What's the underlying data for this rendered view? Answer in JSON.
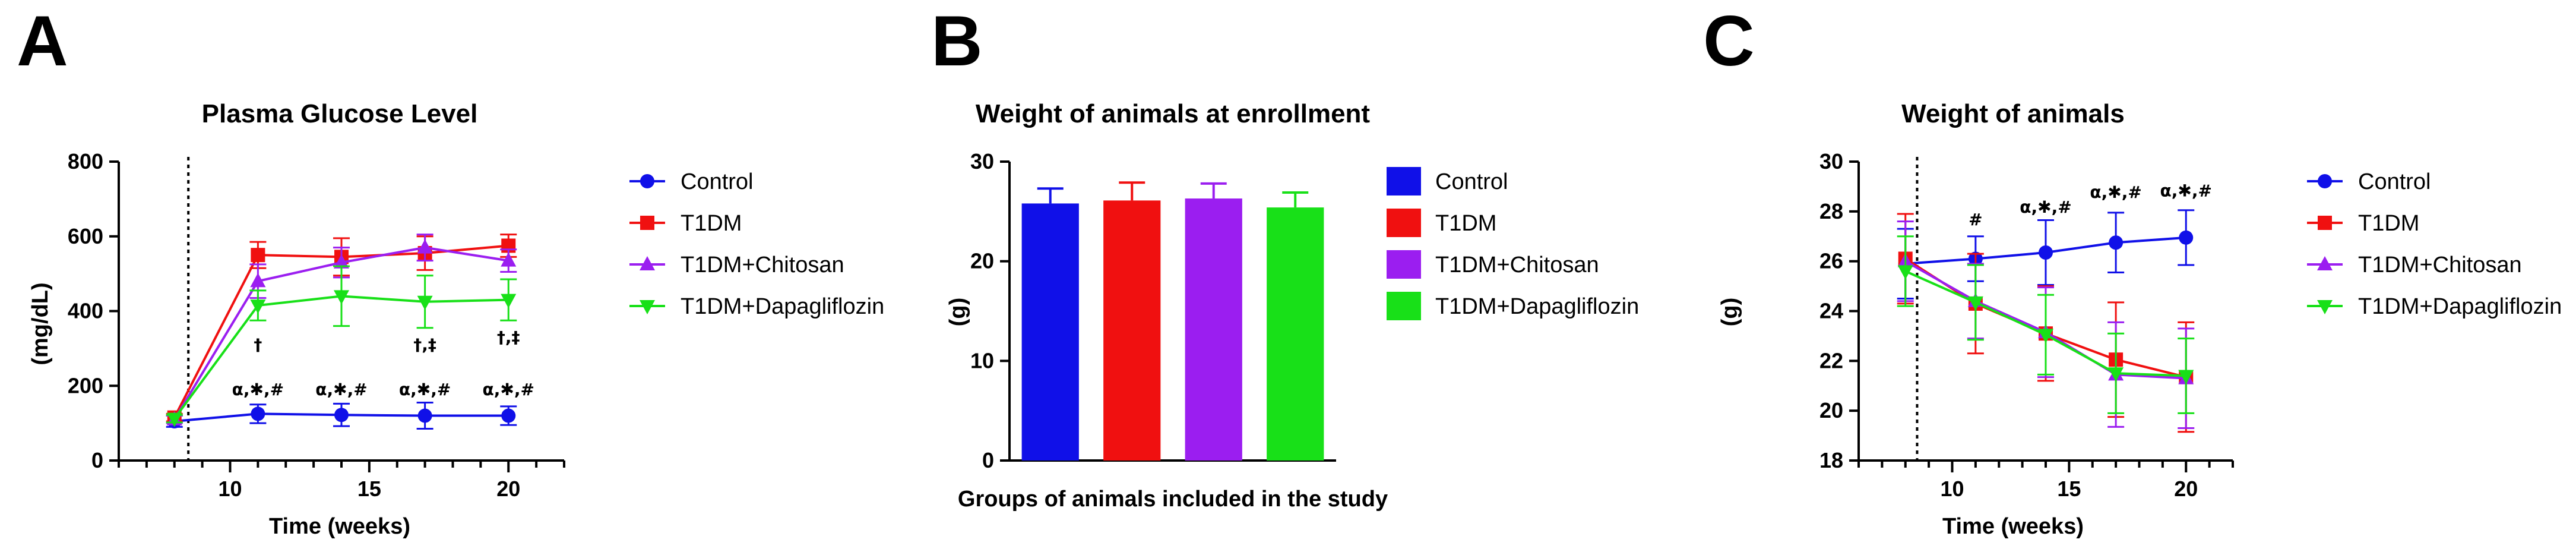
{
  "colors": {
    "Control": "#1010e8",
    "T1DM": "#f01010",
    "T1DM+Chitosan": "#9b1ef0",
    "T1DM+Dapagliflozin": "#18e018"
  },
  "chart_data": [
    {
      "panel": "A",
      "type": "line",
      "title": "Plasma Glucose Level",
      "xlabel": "Time (weeks)",
      "ylabel": "(mg/dL)",
      "xlim": [
        6,
        22
      ],
      "ylim": [
        0,
        800
      ],
      "xticks": [
        10,
        15,
        20
      ],
      "yticks": [
        0,
        200,
        400,
        600,
        800
      ],
      "vline_x": 8.5,
      "legend_position": "right",
      "series": [
        {
          "name": "Control",
          "marker": "circle",
          "x": [
            8,
            11,
            14,
            17,
            20
          ],
          "y": [
            105,
            125,
            122,
            120,
            120
          ],
          "err": [
            15,
            25,
            30,
            35,
            25
          ]
        },
        {
          "name": "T1DM",
          "marker": "square",
          "x": [
            8,
            11,
            14,
            17,
            20
          ],
          "y": [
            115,
            550,
            545,
            555,
            575
          ],
          "err": [
            10,
            35,
            50,
            45,
            30
          ]
        },
        {
          "name": "T1DM+Chitosan",
          "marker": "triangle-up",
          "x": [
            8,
            11,
            14,
            17,
            20
          ],
          "y": [
            110,
            480,
            530,
            570,
            535
          ],
          "err": [
            10,
            45,
            40,
            35,
            30
          ]
        },
        {
          "name": "T1DM+Dapagliflozin",
          "marker": "triangle-down",
          "x": [
            8,
            11,
            14,
            17,
            20
          ],
          "y": [
            112,
            415,
            440,
            425,
            430
          ],
          "err": [
            10,
            40,
            80,
            70,
            55
          ]
        }
      ],
      "annotations": [
        {
          "text": "α,✱,#",
          "x": 11,
          "y": 175
        },
        {
          "text": "α,✱,#",
          "x": 14,
          "y": 175
        },
        {
          "text": "α,✱,#",
          "x": 17,
          "y": 175
        },
        {
          "text": "α,✱,#",
          "x": 20,
          "y": 175
        },
        {
          "text": "†",
          "x": 11,
          "y": 295
        },
        {
          "text": "†,‡",
          "x": 17,
          "y": 295
        },
        {
          "text": "†,‡",
          "x": 20,
          "y": 315
        }
      ]
    },
    {
      "panel": "B",
      "type": "bar",
      "title": "Weight of animals at enrollment",
      "xlabel": "Groups of animals included in the study",
      "ylabel": "(g)",
      "ylim": [
        0,
        30
      ],
      "yticks": [
        0,
        10,
        20,
        30
      ],
      "legend_position": "right",
      "categories": [
        "Control",
        "T1DM",
        "T1DM+Chitosan",
        "T1DM+Dapagliflozin"
      ],
      "values": [
        25.8,
        26.1,
        26.3,
        25.4
      ],
      "err": [
        1.5,
        1.8,
        1.5,
        1.5
      ]
    },
    {
      "panel": "C",
      "type": "line",
      "title": "Weight of animals",
      "xlabel": "Time (weeks)",
      "ylabel": "(g)",
      "xlim": [
        6,
        22
      ],
      "ylim": [
        18,
        30
      ],
      "xticks": [
        10,
        15,
        20
      ],
      "yticks": [
        18,
        20,
        22,
        24,
        26,
        28,
        30
      ],
      "vline_x": 8.5,
      "legend_position": "right",
      "series": [
        {
          "name": "Control",
          "marker": "circle",
          "x": [
            8,
            11,
            14,
            17,
            20
          ],
          "y": [
            25.9,
            26.1,
            26.35,
            26.75,
            26.95
          ],
          "err": [
            1.4,
            0.9,
            1.3,
            1.2,
            1.1
          ]
        },
        {
          "name": "T1DM",
          "marker": "square",
          "x": [
            8,
            11,
            14,
            17,
            20
          ],
          "y": [
            26.1,
            24.3,
            23.1,
            22.05,
            21.35
          ],
          "err": [
            1.8,
            2.0,
            1.9,
            2.3,
            2.2
          ]
        },
        {
          "name": "T1DM+Chitosan",
          "marker": "triangle-up",
          "x": [
            8,
            11,
            14,
            17,
            20
          ],
          "y": [
            26.0,
            24.4,
            23.15,
            21.45,
            21.3
          ],
          "err": [
            1.6,
            1.5,
            1.8,
            2.1,
            2.0
          ]
        },
        {
          "name": "T1DM+Dapagliflozin",
          "marker": "triangle-down",
          "x": [
            8,
            11,
            14,
            17,
            20
          ],
          "y": [
            25.6,
            24.35,
            23.05,
            21.5,
            21.4
          ],
          "err": [
            1.4,
            1.5,
            1.6,
            1.6,
            1.5
          ]
        }
      ],
      "annotations": [
        {
          "text": "#",
          "x": 11,
          "y": 27.45
        },
        {
          "text": "α,✱,#",
          "x": 14,
          "y": 27.95
        },
        {
          "text": "α,✱,#",
          "x": 17,
          "y": 28.55
        },
        {
          "text": "α,✱,#",
          "x": 20,
          "y": 28.6
        }
      ]
    }
  ]
}
